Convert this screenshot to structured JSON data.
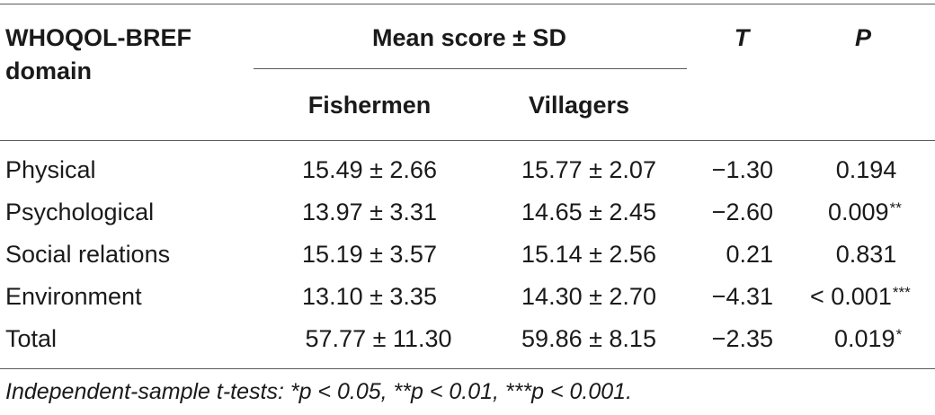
{
  "header": {
    "domain_line1": "WHOQOL-BREF",
    "domain_line2": "domain",
    "mean_group": "Mean score ± SD",
    "t_label": "T",
    "p_label": "P",
    "fishermen": "Fishermen",
    "villagers": "Villagers"
  },
  "rows": [
    {
      "domain": "Physical",
      "fishermen": "15.49 ± 2.66",
      "villagers": "15.77 ± 2.07",
      "t": "−1.30",
      "p": "0.194",
      "sig": ""
    },
    {
      "domain": "Psychological",
      "fishermen": "13.97 ± 3.31",
      "villagers": "14.65 ± 2.45",
      "t": "−2.60",
      "p": "0.009",
      "sig": "**"
    },
    {
      "domain": "Social relations",
      "fishermen": "15.19 ± 3.57",
      "villagers": "15.14 ± 2.56",
      "t": "0.21",
      "p": "0.831",
      "sig": ""
    },
    {
      "domain": "Environment",
      "fishermen": "13.10 ± 3.35",
      "villagers": "14.30 ± 2.70",
      "t": "−4.31",
      "p": "< 0.001",
      "sig": "***"
    },
    {
      "domain": "Total",
      "fishermen": "57.77 ± 11.30",
      "villagers": "59.86 ± 8.15",
      "t": "−2.35",
      "p": "0.019",
      "sig": "*"
    }
  ],
  "footnote": "Independent-sample t-tests: *p < 0.05, **p < 0.01, ***p < 0.001."
}
